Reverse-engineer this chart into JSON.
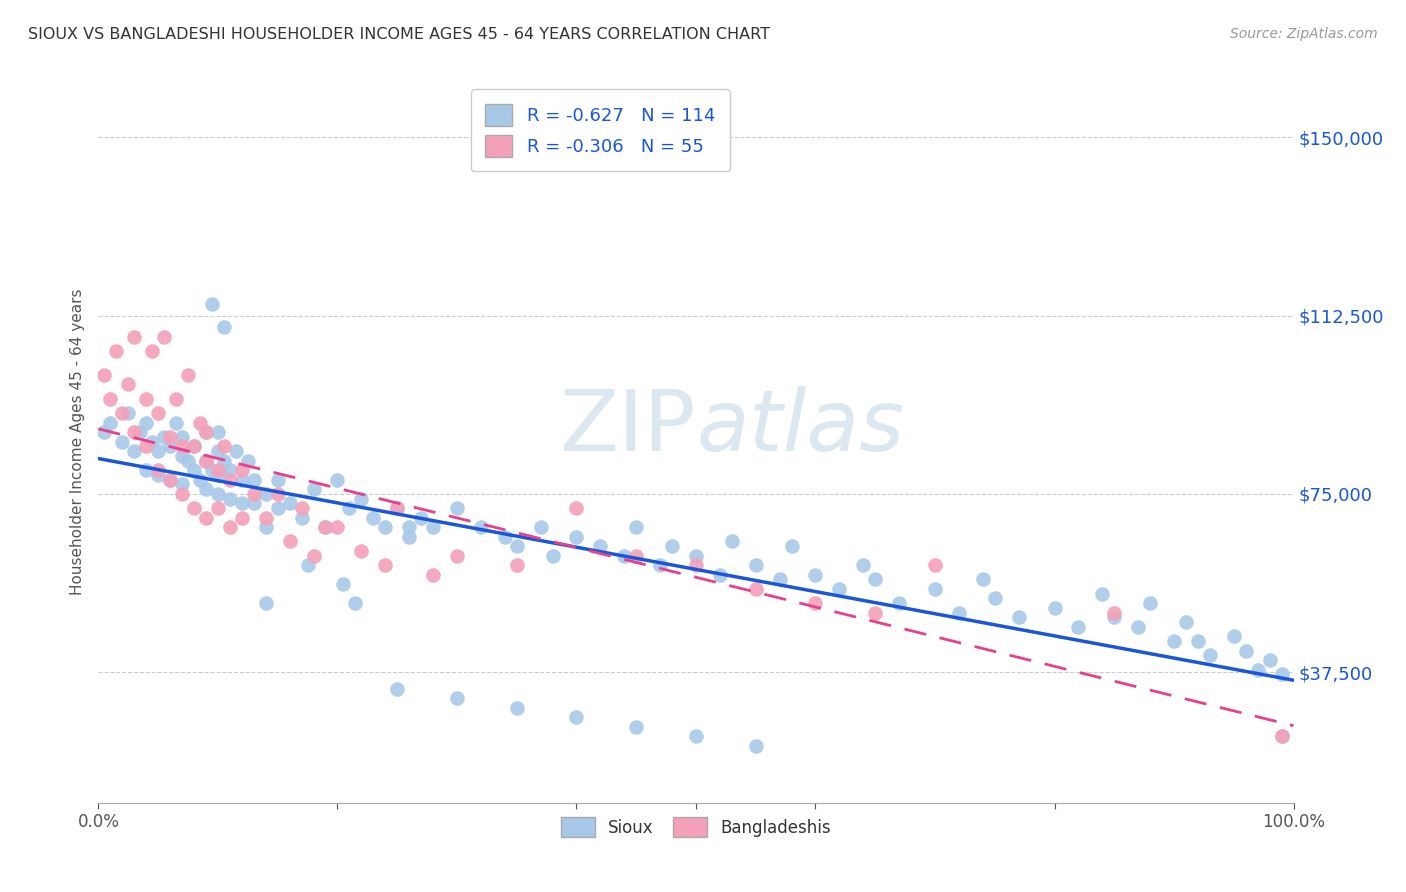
{
  "title": "SIOUX VS BANGLADESHI HOUSEHOLDER INCOME AGES 45 - 64 YEARS CORRELATION CHART",
  "source": "Source: ZipAtlas.com",
  "ylabel": "Householder Income Ages 45 - 64 years",
  "ytick_labels": [
    "$37,500",
    "$75,000",
    "$112,500",
    "$150,000"
  ],
  "ytick_values": [
    37500,
    75000,
    112500,
    150000
  ],
  "ymin": 10000,
  "ymax": 162000,
  "xmin": 0.0,
  "xmax": 1.0,
  "sioux_color": "#a8c8e8",
  "bangladeshi_color": "#f4a0b8",
  "sioux_line_color": "#1a56db",
  "bangladeshi_line_color": "#e8408a",
  "watermark_color": "#dce8f0",
  "legend_sioux_R": "-0.627",
  "legend_sioux_N": "114",
  "legend_bangladeshi_R": "-0.306",
  "legend_bangladeshi_N": "55",
  "sioux_x": [
    0.005,
    0.01,
    0.02,
    0.025,
    0.03,
    0.035,
    0.04,
    0.04,
    0.045,
    0.05,
    0.05,
    0.055,
    0.06,
    0.06,
    0.065,
    0.07,
    0.07,
    0.07,
    0.075,
    0.08,
    0.08,
    0.085,
    0.09,
    0.09,
    0.09,
    0.095,
    0.1,
    0.1,
    0.1,
    0.1,
    0.105,
    0.11,
    0.11,
    0.115,
    0.12,
    0.12,
    0.125,
    0.13,
    0.13,
    0.14,
    0.14,
    0.15,
    0.15,
    0.16,
    0.17,
    0.18,
    0.19,
    0.2,
    0.21,
    0.22,
    0.23,
    0.24,
    0.25,
    0.26,
    0.27,
    0.28,
    0.3,
    0.32,
    0.34,
    0.35,
    0.37,
    0.38,
    0.4,
    0.42,
    0.44,
    0.45,
    0.47,
    0.48,
    0.5,
    0.52,
    0.53,
    0.55,
    0.57,
    0.58,
    0.6,
    0.62,
    0.64,
    0.65,
    0.67,
    0.7,
    0.72,
    0.74,
    0.75,
    0.77,
    0.8,
    0.82,
    0.84,
    0.85,
    0.87,
    0.88,
    0.9,
    0.91,
    0.92,
    0.93,
    0.95,
    0.96,
    0.97,
    0.98,
    0.99,
    0.99,
    0.175,
    0.205,
    0.215,
    0.095,
    0.105,
    0.26,
    0.14,
    0.25,
    0.3,
    0.35,
    0.4,
    0.45,
    0.5,
    0.55
  ],
  "sioux_y": [
    88000,
    90000,
    86000,
    92000,
    84000,
    88000,
    80000,
    90000,
    86000,
    84000,
    79000,
    87000,
    85000,
    78000,
    90000,
    83000,
    77000,
    87000,
    82000,
    80000,
    85000,
    78000,
    82000,
    76000,
    88000,
    80000,
    84000,
    79000,
    75000,
    88000,
    82000,
    80000,
    74000,
    84000,
    78000,
    73000,
    82000,
    78000,
    73000,
    75000,
    68000,
    78000,
    72000,
    73000,
    70000,
    76000,
    68000,
    78000,
    72000,
    74000,
    70000,
    68000,
    72000,
    66000,
    70000,
    68000,
    72000,
    68000,
    66000,
    64000,
    68000,
    62000,
    66000,
    64000,
    62000,
    68000,
    60000,
    64000,
    62000,
    58000,
    65000,
    60000,
    57000,
    64000,
    58000,
    55000,
    60000,
    57000,
    52000,
    55000,
    50000,
    57000,
    53000,
    49000,
    51000,
    47000,
    54000,
    49000,
    47000,
    52000,
    44000,
    48000,
    44000,
    41000,
    45000,
    42000,
    38000,
    40000,
    37000,
    24000,
    60000,
    56000,
    52000,
    115000,
    110000,
    68000,
    52000,
    34000,
    32000,
    30000,
    28000,
    26000,
    24000,
    22000
  ],
  "bangladeshi_x": [
    0.005,
    0.01,
    0.015,
    0.02,
    0.025,
    0.03,
    0.03,
    0.04,
    0.04,
    0.045,
    0.05,
    0.05,
    0.055,
    0.06,
    0.06,
    0.065,
    0.07,
    0.07,
    0.075,
    0.08,
    0.08,
    0.085,
    0.09,
    0.09,
    0.09,
    0.1,
    0.1,
    0.105,
    0.11,
    0.11,
    0.12,
    0.12,
    0.13,
    0.14,
    0.15,
    0.16,
    0.17,
    0.18,
    0.19,
    0.2,
    0.22,
    0.24,
    0.25,
    0.28,
    0.3,
    0.35,
    0.4,
    0.45,
    0.5,
    0.55,
    0.6,
    0.65,
    0.7,
    0.85,
    0.99
  ],
  "bangladeshi_y": [
    100000,
    95000,
    105000,
    92000,
    98000,
    88000,
    108000,
    95000,
    85000,
    105000,
    92000,
    80000,
    108000,
    87000,
    78000,
    95000,
    85000,
    75000,
    100000,
    85000,
    72000,
    90000,
    82000,
    70000,
    88000,
    80000,
    72000,
    85000,
    78000,
    68000,
    80000,
    70000,
    75000,
    70000,
    75000,
    65000,
    72000,
    62000,
    68000,
    68000,
    63000,
    60000,
    72000,
    58000,
    62000,
    60000,
    72000,
    62000,
    60000,
    55000,
    52000,
    50000,
    60000,
    50000,
    24000
  ]
}
